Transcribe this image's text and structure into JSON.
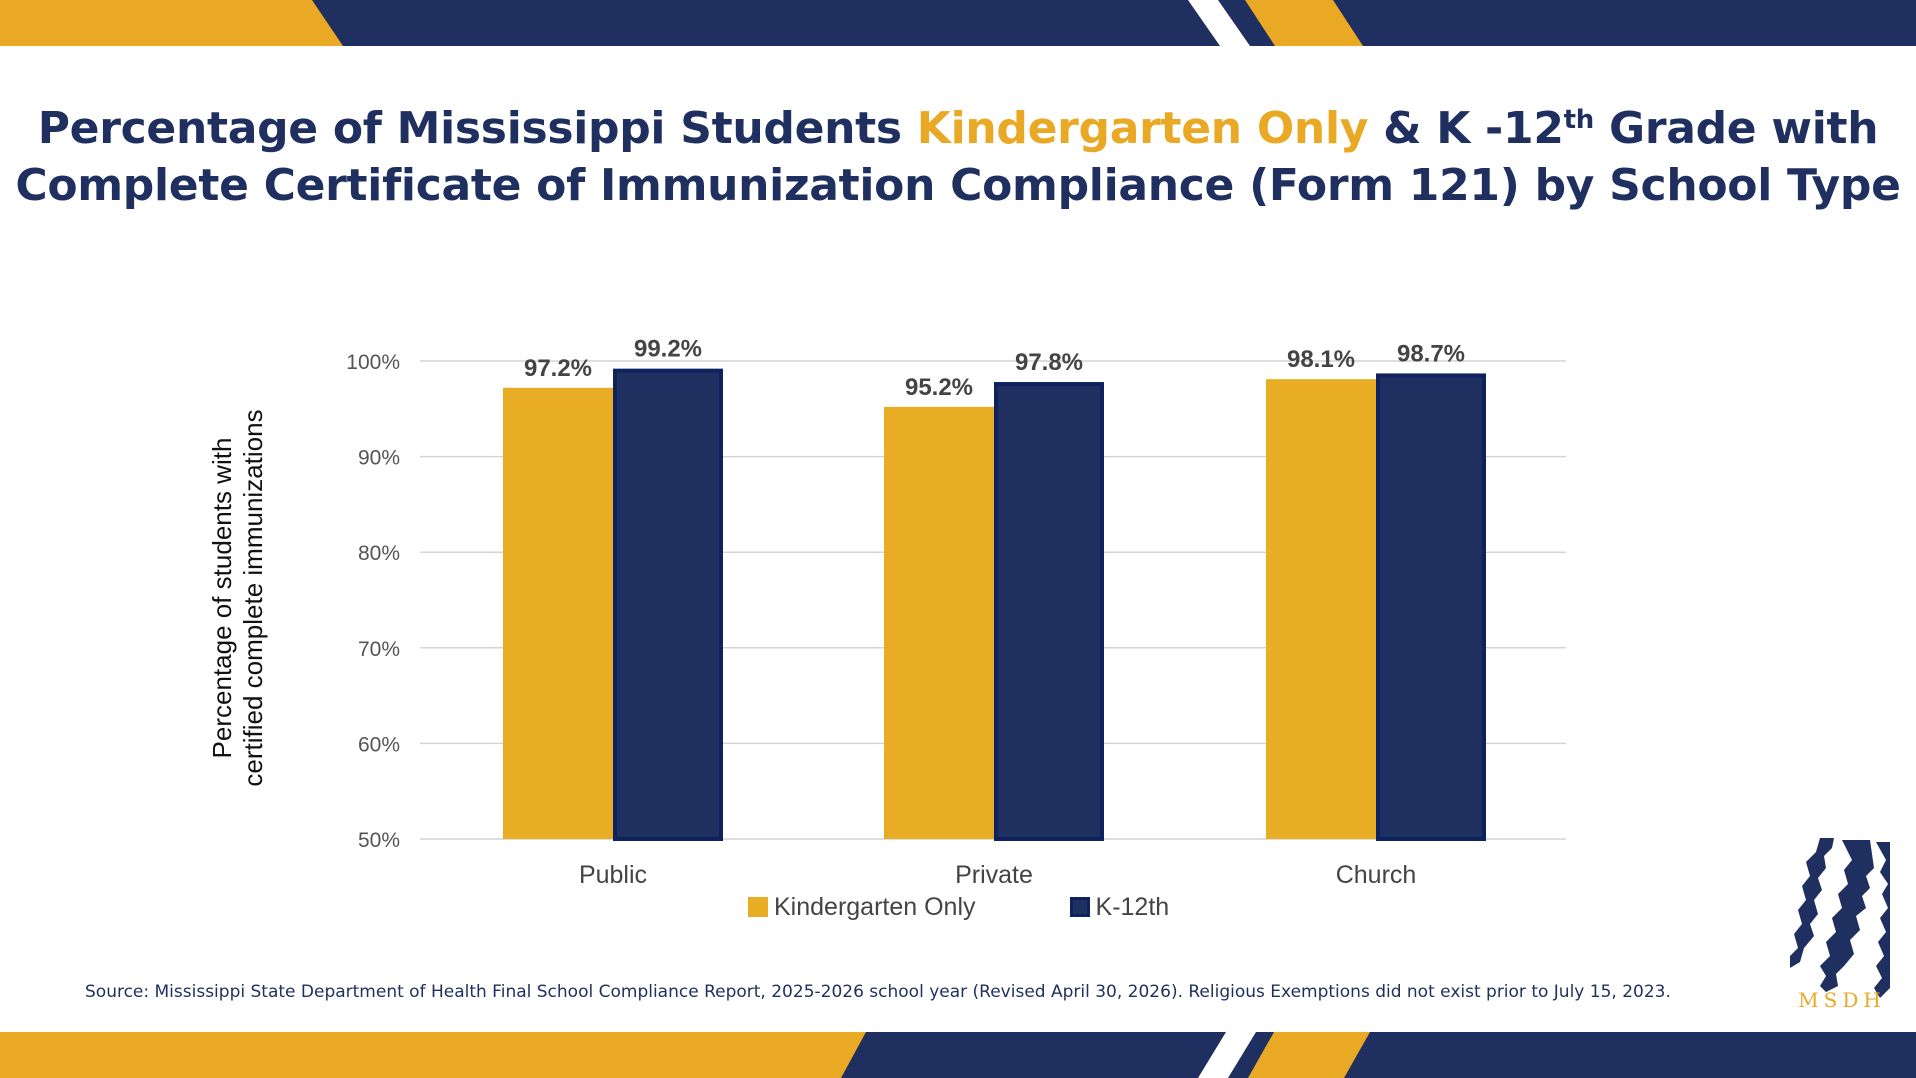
{
  "title": {
    "part1": "Percentage of Mississippi Students ",
    "accent": "Kindergarten Only",
    "part2": " & K -12",
    "sup": "th",
    "part3": " Grade with",
    "line2": "Complete Certificate of Immunization Compliance (Form 121) by School Type"
  },
  "colors": {
    "navy": "#1f2f5f",
    "gold": "#e9a925",
    "bar_k12": "#1f2f5f",
    "bar_k12_border": "#0f2260",
    "bar_kinder": "#e9ac25"
  },
  "chart_data": {
    "type": "bar",
    "categories": [
      "Public",
      "Private",
      "Church"
    ],
    "series": [
      {
        "name": "Kindergarten Only",
        "values": [
          97.2,
          95.2,
          98.1
        ],
        "labels": [
          "97.2%",
          "95.2%",
          "98.1%"
        ]
      },
      {
        "name": "K-12th",
        "values": [
          99.2,
          97.8,
          98.7
        ],
        "labels": [
          "99.2%",
          "97.8%",
          "98.7%"
        ]
      }
    ],
    "ylabel": "Percentage of students with certified complete immunizations",
    "ylabel_lines": [
      "Percentage of students with",
      "certified complete immunizations"
    ],
    "ylim": [
      50,
      100
    ],
    "yticks": [
      50,
      60,
      70,
      80,
      90,
      100
    ],
    "ytick_labels": [
      "50%",
      "60%",
      "70%",
      "80%",
      "90%",
      "100%"
    ],
    "grid": true,
    "legend_position": "bottom"
  },
  "source": "Source: Mississippi State Department of Health Final School Compliance Report, 2025-2026 school year (Revised April 30, 2026). Religious Exemptions did not exist prior to July 15, 2023.",
  "logo": {
    "text": "MSDH",
    "icon": "msdh-profile-logo-icon"
  }
}
